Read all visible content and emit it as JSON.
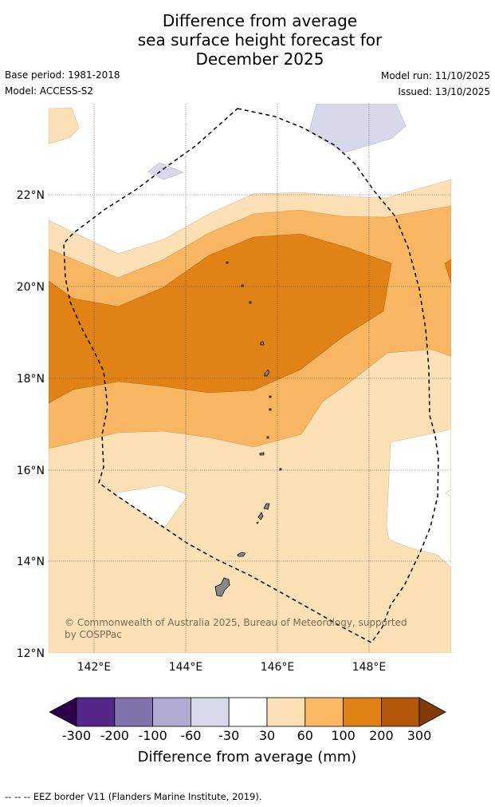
{
  "title": {
    "line1": "Difference from average",
    "line2": "sea surface height forecast for",
    "line3": "December 2025"
  },
  "info": {
    "base_period": "Base period: 1981-2018",
    "model": "Model: ACCESS-S2",
    "model_run": "Model run: 11/10/2025",
    "issued": "Issued: 13/10/2025"
  },
  "map": {
    "lat_labels": [
      "22°N",
      "20°N",
      "18°N",
      "16°N",
      "14°N",
      "12°N"
    ],
    "lon_labels": [
      "142°E",
      "144°E",
      "146°E",
      "148°E"
    ],
    "credit_line1": "© Commonwealth of Australia 2025, Bureau of Meteorology, supported",
    "credit_line2": "by COSPPac",
    "colors": {
      "neg30_60": "#d8d8eb",
      "c30_60": "#fde0b6",
      "c60_100": "#f9b662",
      "c100_200": "#e08215",
      "land": "#888888",
      "border": "#000000"
    }
  },
  "colorbar": {
    "title": "Difference from average (mm)",
    "ticks": [
      "-300",
      "-200",
      "-100",
      "-60",
      "-30",
      "30",
      "60",
      "100",
      "200",
      "300"
    ],
    "colors": [
      "#2d004b",
      "#542788",
      "#8073ac",
      "#b2abd2",
      "#d8daeb",
      "#ffffff",
      "#fee0b6",
      "#fdb863",
      "#e08214",
      "#b35806",
      "#7f3b08"
    ]
  },
  "footer": "--  --  -- EEZ border V11 (Flanders Marine Institute, 2019)."
}
